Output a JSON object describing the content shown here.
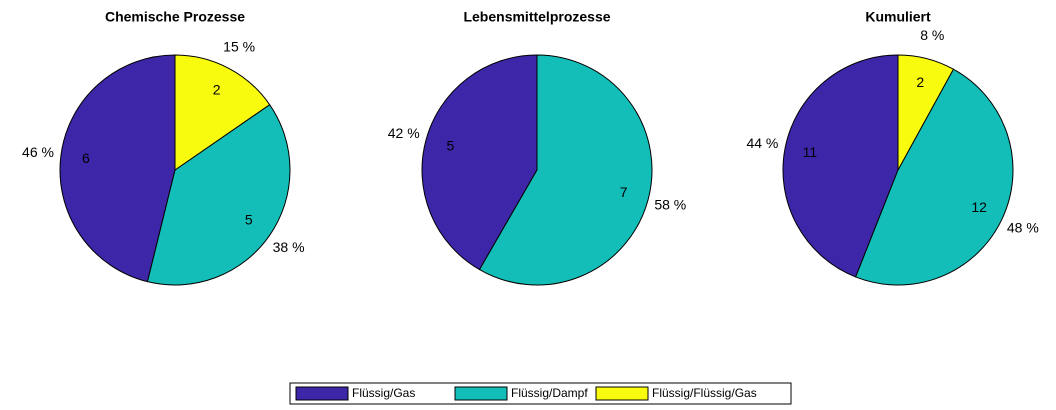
{
  "chart_data": [
    {
      "type": "pie",
      "title": "Chemische Prozesse",
      "values": [
        6,
        5,
        2
      ],
      "percent_labels": [
        "46 %",
        "38 %",
        "15 %"
      ],
      "colors": [
        "#3e26a8",
        "#13beb8",
        "#f9fb0e"
      ]
    },
    {
      "type": "pie",
      "title": "Lebensmittelprozesse",
      "values": [
        5,
        7
      ],
      "percent_labels": [
        "42 %",
        "58 %"
      ],
      "colors": [
        "#3e26a8",
        "#13beb8"
      ]
    },
    {
      "type": "pie",
      "title": "Kumuliert",
      "values": [
        11,
        12,
        2
      ],
      "percent_labels": [
        "44 %",
        "48 %",
        "8 %"
      ],
      "colors": [
        "#3e26a8",
        "#13beb8",
        "#f9fb0e"
      ]
    }
  ],
  "legend": {
    "labels": [
      "Flüssig/Gas",
      "Flüssig/Dampf",
      "Flüssig/Flüssig/Gas"
    ],
    "colors": [
      "#3e26a8",
      "#13beb8",
      "#f9fb0e"
    ]
  }
}
